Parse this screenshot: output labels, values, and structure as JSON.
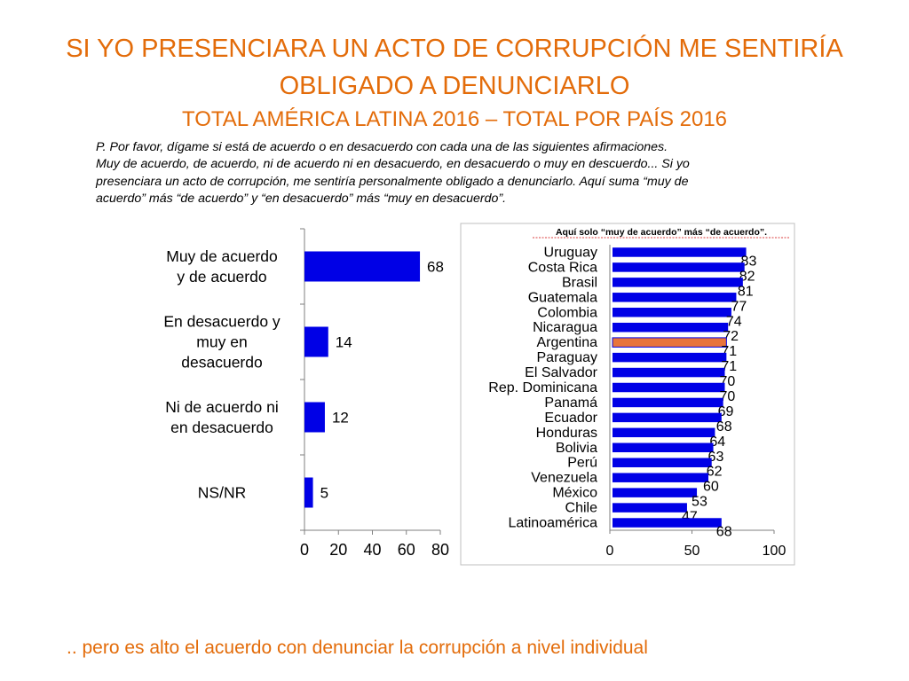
{
  "title_line1": "SI YO PRESENCIARA UN ACTO DE CORRUPCIÓN ME SENTIRÍA",
  "title_line2": "OBLIGADO A DENUNCIARLO",
  "subtitle": "TOTAL AMÉRICA LATINA 2016 – TOTAL POR PAÍS 2016",
  "question_line1": "P. Por favor, dígame si está de acuerdo o en desacuerdo con cada una de las siguientes afirmaciones.",
  "question_line2": "Muy de acuerdo, de acuerdo, ni de acuerdo ni en desacuerdo, en desacuerdo o muy en descuerdo... Si yo",
  "question_line3": "presenciara un acto de corrupción, me sentiría personalmente obligado a denunciarlo.  Aquí suma “muy de",
  "question_line4": "acuerdo” más “de acuerdo” y “en desacuerdo” más “muy en desacuerdo”.",
  "footer": ".. pero es alto el acuerdo con denunciar la corrupción a nivel individual",
  "chart_data": [
    {
      "type": "bar",
      "orientation": "horizontal",
      "categories": [
        [
          "Muy de acuerdo",
          "y de acuerdo"
        ],
        [
          "En desacuerdo y",
          "muy en",
          "desacuerdo"
        ],
        [
          "Ni de acuerdo ni",
          "en desacuerdo"
        ],
        [
          "NS/NR"
        ]
      ],
      "values": [
        68,
        14,
        12,
        5
      ],
      "xlim": [
        0,
        80
      ],
      "xticks": [
        0,
        20,
        40,
        60,
        80
      ],
      "bar_color": "#0000e6"
    },
    {
      "type": "bar",
      "orientation": "horizontal",
      "title": "Aquí solo “muy de acuerdo” más “de acuerdo”.",
      "categories": [
        "Uruguay",
        "Costa Rica",
        "Brasil",
        "Guatemala",
        "Colombia",
        "Nicaragua",
        "Argentina",
        "Paraguay",
        "El Salvador",
        "Rep. Dominicana",
        "Panamá",
        "Ecuador",
        "Honduras",
        "Bolivia",
        "Perú",
        "Venezuela",
        "México",
        "Chile",
        "Latinoamérica"
      ],
      "values": [
        83,
        82,
        81,
        77,
        74,
        72,
        71,
        71,
        70,
        70,
        69,
        68,
        64,
        63,
        62,
        60,
        53,
        47,
        68
      ],
      "xlim": [
        0,
        100
      ],
      "xticks": [
        0,
        50,
        100
      ],
      "bar_color": "#0000e6",
      "highlight": "Argentina",
      "highlight_color": "#e8743b"
    }
  ]
}
